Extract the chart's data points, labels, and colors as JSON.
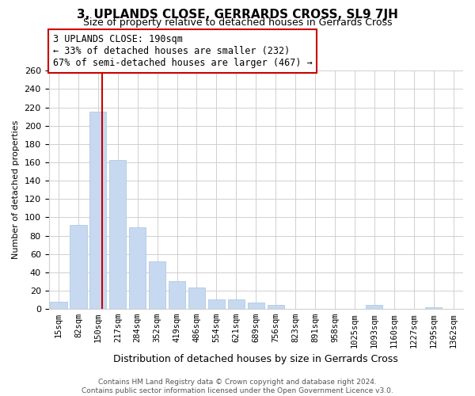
{
  "title": "3, UPLANDS CLOSE, GERRARDS CROSS, SL9 7JH",
  "subtitle": "Size of property relative to detached houses in Gerrards Cross",
  "xlabel": "Distribution of detached houses by size in Gerrards Cross",
  "ylabel": "Number of detached properties",
  "bar_labels": [
    "15sqm",
    "82sqm",
    "150sqm",
    "217sqm",
    "284sqm",
    "352sqm",
    "419sqm",
    "486sqm",
    "554sqm",
    "621sqm",
    "689sqm",
    "756sqm",
    "823sqm",
    "891sqm",
    "958sqm",
    "1025sqm",
    "1093sqm",
    "1160sqm",
    "1227sqm",
    "1295sqm",
    "1362sqm"
  ],
  "bar_values": [
    8,
    92,
    215,
    163,
    89,
    52,
    30,
    23,
    10,
    10,
    7,
    4,
    0,
    0,
    0,
    0,
    4,
    0,
    0,
    2,
    0
  ],
  "bar_color": "#c6d9f0",
  "bar_edge_color": "#a8c4e0",
  "vline_color": "#cc0000",
  "vline_x": 2.2,
  "ylim": [
    0,
    260
  ],
  "yticks": [
    0,
    20,
    40,
    60,
    80,
    100,
    120,
    140,
    160,
    180,
    200,
    220,
    240,
    260
  ],
  "annotation_line1": "3 UPLANDS CLOSE: 190sqm",
  "annotation_line2": "← 33% of detached houses are smaller (232)",
  "annotation_line3": "67% of semi-detached houses are larger (467) →",
  "footer_line1": "Contains HM Land Registry data © Crown copyright and database right 2024.",
  "footer_line2": "Contains public sector information licensed under the Open Government Licence v3.0.",
  "background_color": "#ffffff",
  "grid_color": "#d0d0d0",
  "title_fontsize": 11,
  "subtitle_fontsize": 9,
  "ylabel_fontsize": 8,
  "xlabel_fontsize": 9,
  "ytick_fontsize": 8,
  "xtick_fontsize": 7.5,
  "annot_fontsize": 8.5,
  "footer_fontsize": 6.5
}
